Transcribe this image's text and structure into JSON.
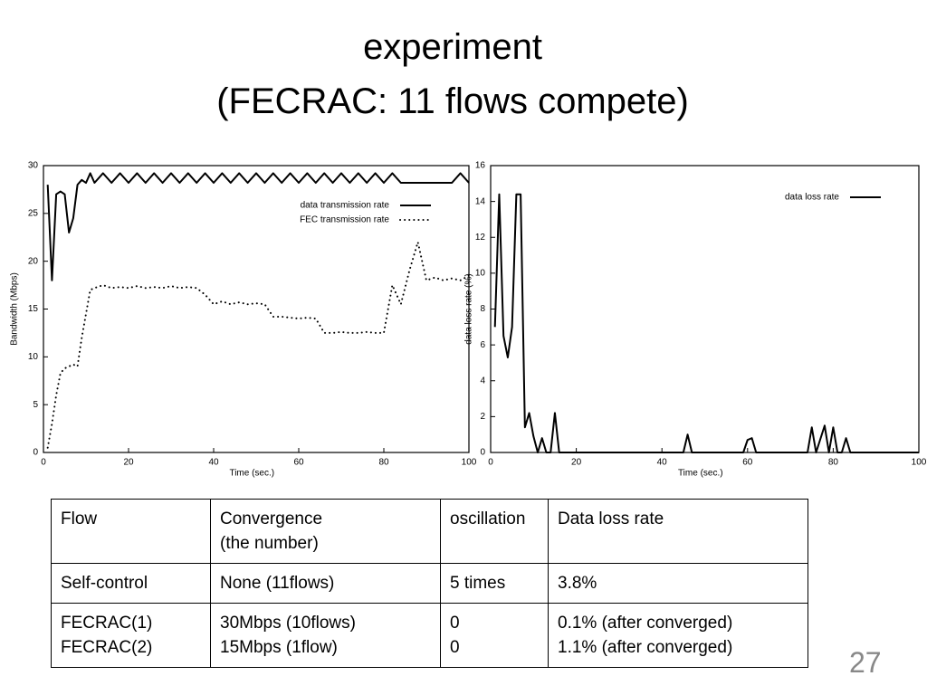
{
  "title": [
    "experiment",
    "(FECRAC: 11 flows compete)"
  ],
  "chart_data": [
    {
      "type": "line",
      "x": [
        1,
        2,
        3,
        4,
        5,
        6,
        7,
        8,
        9,
        10,
        11,
        12,
        14,
        16,
        18,
        20,
        22,
        24,
        26,
        28,
        30,
        32,
        34,
        36,
        38,
        40,
        42,
        44,
        46,
        48,
        50,
        52,
        54,
        56,
        58,
        60,
        62,
        64,
        66,
        68,
        70,
        72,
        74,
        76,
        78,
        80,
        82,
        84,
        86,
        88,
        90,
        92,
        94,
        96,
        98,
        100
      ],
      "xlim": [
        0,
        100
      ],
      "xticks": [
        0,
        20,
        40,
        60,
        80,
        100
      ],
      "ylim": [
        0,
        30
      ],
      "yticks": [
        0,
        5,
        10,
        15,
        20,
        25,
        30
      ],
      "x_label": "Time (sec.)",
      "y_label": "Bandwidth (Mbps)",
      "legend": "top-right",
      "series": [
        {
          "name": "data transmission rate",
          "color": "#000000",
          "style": "solid",
          "values": [
            28,
            18,
            27,
            27.3,
            27,
            23,
            24.5,
            28,
            28.5,
            28.2,
            29.2,
            28.2,
            29.2,
            28.2,
            29.2,
            28.2,
            29.2,
            28.2,
            29.2,
            28.2,
            29.2,
            28.2,
            29.2,
            28.2,
            29.2,
            28.2,
            29.2,
            28.2,
            29.2,
            28.2,
            29.2,
            28.2,
            29.2,
            28.2,
            29.2,
            28.2,
            29.2,
            28.2,
            29.2,
            28.2,
            29.2,
            28.2,
            29.2,
            28.2,
            29.2,
            28.2,
            29.2,
            28.2,
            28.2,
            28.2,
            28.2,
            28.2,
            28.2,
            28.2,
            29.2,
            28.2
          ]
        },
        {
          "name": "FEC transmission rate",
          "color": "#000000",
          "style": "dotted",
          "values": [
            0.5,
            3,
            6,
            8.3,
            8.8,
            9,
            9.2,
            9,
            12,
            14.5,
            17,
            17.2,
            17.5,
            17.2,
            17.3,
            17.2,
            17.4,
            17.2,
            17.3,
            17.2,
            17.4,
            17.2,
            17.3,
            17.2,
            16.5,
            15.5,
            15.8,
            15.5,
            15.7,
            15.5,
            15.6,
            15.5,
            14.2,
            14.2,
            14.1,
            14,
            14.1,
            14,
            12.5,
            12.5,
            12.6,
            12.5,
            12.5,
            12.6,
            12.5,
            12.5,
            17.5,
            15.5,
            19,
            22,
            18,
            18.3,
            18,
            18.2,
            18,
            18.5
          ]
        }
      ]
    },
    {
      "type": "line",
      "x": [
        1,
        2,
        3,
        4,
        5,
        6,
        7,
        8,
        9,
        10,
        11,
        12,
        13,
        14,
        15,
        16,
        45,
        46,
        47,
        59,
        60,
        61,
        62,
        74,
        75,
        76,
        78,
        79,
        80,
        81,
        82,
        83,
        84,
        100
      ],
      "xlim": [
        0,
        100
      ],
      "xticks": [
        0,
        20,
        40,
        60,
        80,
        100
      ],
      "ylim": [
        0,
        16
      ],
      "yticks": [
        0,
        2,
        4,
        6,
        8,
        10,
        12,
        14,
        16
      ],
      "x_label": "Time (sec.)",
      "y_label": "data loss rate (%)",
      "legend": "top-right",
      "series": [
        {
          "name": "data loss rate",
          "color": "#000000",
          "style": "solid",
          "values": [
            7,
            14.4,
            6.5,
            5.3,
            7,
            14.4,
            14.4,
            1.4,
            2.2,
            0.9,
            0,
            0.8,
            0,
            0,
            2.2,
            0,
            0,
            1,
            0,
            0,
            0.7,
            0.8,
            0,
            0,
            1.4,
            0,
            1.5,
            0,
            1.4,
            0,
            0,
            0.8,
            0,
            0
          ]
        }
      ]
    }
  ],
  "table": {
    "rows": [
      [
        [
          "Flow"
        ],
        [
          "Convergence",
          "(the number)"
        ],
        [
          "oscillation"
        ],
        [
          "Data loss rate"
        ]
      ],
      [
        [
          "Self-control"
        ],
        [
          "None (11flows)"
        ],
        [
          "5 times"
        ],
        [
          "3.8%"
        ]
      ],
      [
        [
          "FECRAC(1)",
          "FECRAC(2)"
        ],
        [
          "30Mbps (10flows)",
          "15Mbps (1flow)"
        ],
        [
          "0",
          "0"
        ],
        [
          "0.1% (after converged)",
          "1.1% (after converged)"
        ]
      ]
    ]
  },
  "page_number": "27"
}
